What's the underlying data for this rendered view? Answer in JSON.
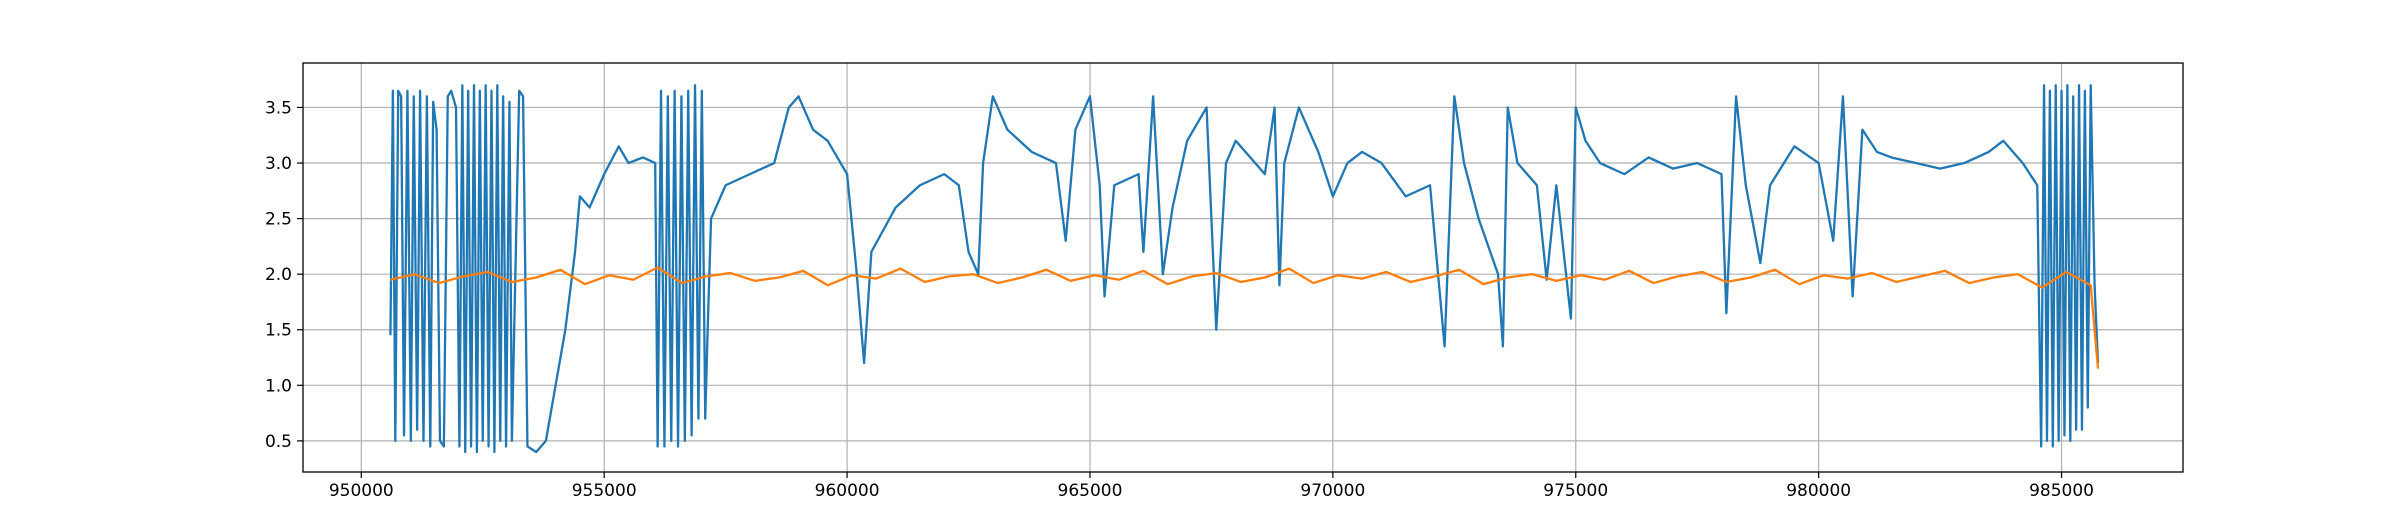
{
  "chart_data": {
    "type": "line",
    "xlim": [
      948800,
      987500
    ],
    "ylim": [
      0.22,
      3.9
    ],
    "xticks": [
      950000,
      955000,
      960000,
      965000,
      970000,
      975000,
      980000,
      985000
    ],
    "yticks": [
      0.5,
      {
        "value": 1,
        "label": "1.0"
      },
      1.5,
      {
        "value": 2,
        "label": "2.0"
      },
      2.5,
      {
        "value": 3,
        "label": "3.0"
      },
      3.5
    ],
    "grid": true,
    "series": [
      {
        "color": "#1f77b4",
        "x": [
          950600,
          950650,
          950700,
          950760,
          950820,
          950880,
          950950,
          951020,
          951080,
          951150,
          951210,
          951280,
          951350,
          951420,
          951480,
          951550,
          951620,
          951700,
          951780,
          951850,
          951950,
          952020,
          952080,
          952140,
          952200,
          952260,
          952320,
          952380,
          952440,
          952500,
          952560,
          952620,
          952680,
          952740,
          952800,
          952860,
          952920,
          952980,
          953050,
          953100,
          953250,
          953330,
          953420,
          953600,
          953800,
          954000,
          954200,
          954400,
          954500,
          954700,
          955000,
          955300,
          955500,
          955800,
          956050,
          956100,
          956170,
          956240,
          956310,
          956380,
          956450,
          956520,
          956590,
          956660,
          956730,
          956800,
          956870,
          956940,
          957010,
          957080,
          957130,
          957200,
          957500,
          958000,
          958500,
          958800,
          959000,
          959300,
          959600,
          960000,
          960200,
          960350,
          960500,
          961000,
          961500,
          962000,
          962300,
          962500,
          962700,
          962800,
          963000,
          963300,
          963800,
          964300,
          964500,
          964700,
          965000,
          965200,
          965300,
          965500,
          966000,
          966100,
          966300,
          966500,
          966700,
          967000,
          967400,
          967500,
          967600,
          967800,
          968000,
          968600,
          968800,
          968900,
          969000,
          969300,
          969700,
          970000,
          970300,
          970600,
          971000,
          971500,
          972000,
          972300,
          972500,
          972700,
          973000,
          973400,
          973500,
          973600,
          973800,
          974200,
          974400,
          974600,
          974900,
          975000,
          975200,
          975500,
          976000,
          976500,
          977000,
          977500,
          978000,
          978100,
          978300,
          978500,
          978800,
          979000,
          979500,
          980000,
          980300,
          980500,
          980700,
          980900,
          981200,
          981500,
          982000,
          982500,
          983000,
          983500,
          983800,
          984200,
          984500,
          984580,
          984640,
          984700,
          984760,
          984820,
          984880,
          984940,
          985000,
          985060,
          985120,
          985180,
          985240,
          985300,
          985360,
          985420,
          985480,
          985540,
          985600,
          985680,
          985750
        ],
        "values": [
          1.45,
          3.65,
          0.5,
          3.65,
          3.6,
          0.55,
          3.65,
          0.5,
          3.6,
          0.6,
          3.65,
          0.5,
          3.6,
          0.45,
          3.55,
          3.3,
          0.5,
          0.45,
          3.6,
          3.65,
          3.5,
          0.45,
          3.7,
          0.4,
          3.65,
          0.45,
          3.7,
          0.4,
          3.65,
          0.5,
          3.7,
          0.45,
          3.65,
          0.4,
          3.7,
          0.5,
          3.6,
          0.45,
          3.55,
          0.5,
          3.65,
          3.6,
          0.45,
          0.4,
          0.5,
          1.0,
          1.5,
          2.2,
          2.7,
          2.6,
          2.9,
          3.15,
          3.0,
          3.05,
          3.0,
          0.45,
          3.65,
          0.45,
          3.6,
          0.5,
          3.65,
          0.45,
          3.6,
          0.5,
          3.65,
          0.55,
          3.7,
          0.7,
          3.65,
          0.7,
          1.5,
          2.5,
          2.8,
          2.9,
          3.0,
          3.5,
          3.6,
          3.3,
          3.2,
          2.9,
          2.0,
          1.2,
          2.2,
          2.6,
          2.8,
          2.9,
          2.8,
          2.2,
          2.0,
          3.0,
          3.6,
          3.3,
          3.1,
          3.0,
          2.3,
          3.3,
          3.6,
          2.8,
          1.8,
          2.8,
          2.9,
          2.2,
          3.6,
          2.0,
          2.6,
          3.2,
          3.5,
          2.5,
          1.5,
          3.0,
          3.2,
          2.9,
          3.5,
          1.9,
          3.0,
          3.5,
          3.1,
          2.7,
          3.0,
          3.1,
          3.0,
          2.7,
          2.8,
          1.35,
          3.6,
          3.0,
          2.5,
          2.0,
          1.35,
          3.5,
          3.0,
          2.8,
          1.95,
          2.8,
          1.6,
          3.5,
          3.2,
          3.0,
          2.9,
          3.05,
          2.95,
          3.0,
          2.9,
          1.65,
          3.6,
          2.8,
          2.1,
          2.8,
          3.15,
          3.0,
          2.3,
          3.6,
          1.8,
          3.3,
          3.1,
          3.05,
          3.0,
          2.95,
          3.0,
          3.1,
          3.2,
          3.0,
          2.8,
          0.45,
          3.7,
          0.5,
          3.65,
          0.45,
          3.7,
          0.5,
          3.65,
          0.55,
          3.7,
          0.5,
          3.6,
          0.6,
          3.7,
          0.6,
          3.65,
          0.8,
          3.7,
          1.9,
          1.2
        ]
      },
      {
        "color": "#ff7f0e",
        "x": [
          950600,
          951100,
          951600,
          952100,
          952600,
          953100,
          953600,
          954100,
          954600,
          955100,
          955600,
          956100,
          956600,
          957100,
          957600,
          958100,
          958600,
          959100,
          959600,
          960100,
          960600,
          961100,
          961600,
          962100,
          962600,
          963100,
          963600,
          964100,
          964600,
          965100,
          965600,
          966100,
          966600,
          967100,
          967600,
          968100,
          968600,
          969100,
          969600,
          970100,
          970600,
          971100,
          971600,
          972100,
          972600,
          973100,
          973600,
          974100,
          974600,
          975100,
          975600,
          976100,
          976600,
          977100,
          977600,
          978100,
          978600,
          979100,
          979600,
          980100,
          980600,
          981100,
          981600,
          982100,
          982600,
          983100,
          983600,
          984100,
          984600,
          985100,
          985600,
          985750
        ],
        "values": [
          1.95,
          2.0,
          1.92,
          1.98,
          2.02,
          1.93,
          1.97,
          2.04,
          1.91,
          1.99,
          1.95,
          2.06,
          1.92,
          1.98,
          2.01,
          1.94,
          1.97,
          2.03,
          1.9,
          1.99,
          1.96,
          2.05,
          1.93,
          1.98,
          2.0,
          1.92,
          1.97,
          2.04,
          1.94,
          1.99,
          1.95,
          2.03,
          1.91,
          1.98,
          2.01,
          1.93,
          1.97,
          2.05,
          1.92,
          1.99,
          1.96,
          2.02,
          1.93,
          1.98,
          2.04,
          1.91,
          1.97,
          2.0,
          1.94,
          1.99,
          1.95,
          2.03,
          1.92,
          1.98,
          2.02,
          1.93,
          1.97,
          2.04,
          1.91,
          1.99,
          1.96,
          2.01,
          1.93,
          1.98,
          2.03,
          1.92,
          1.97,
          2.0,
          1.88,
          2.02,
          1.9,
          1.15
        ]
      }
    ]
  }
}
